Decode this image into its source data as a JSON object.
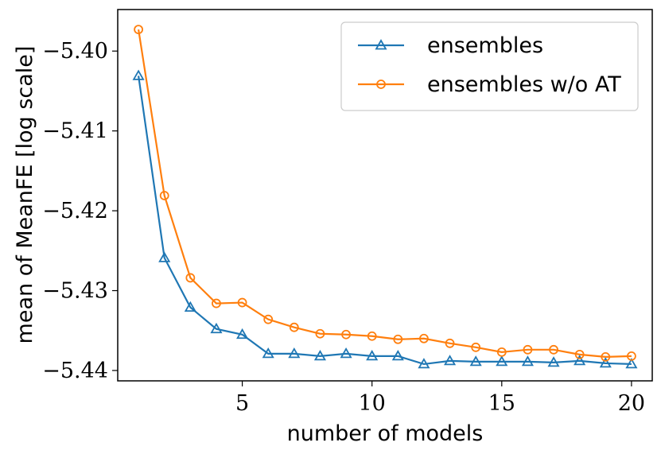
{
  "chart_data": {
    "type": "line",
    "title": "",
    "xlabel": "number of models",
    "ylabel": "mean of MeanFE [log scale]",
    "xlim": [
      0.2,
      20.8
    ],
    "ylim": [
      -5.4413,
      -5.3948
    ],
    "x_ticks": [
      5,
      10,
      15,
      20
    ],
    "x_tick_labels": [
      "5",
      "10",
      "15",
      "20"
    ],
    "y_ticks": [
      -5.44,
      -5.43,
      -5.42,
      -5.41,
      -5.4
    ],
    "y_tick_labels": [
      "−5.44",
      "−5.43",
      "−5.42",
      "−5.41",
      "−5.40"
    ],
    "grid": false,
    "legend_position": "top-right",
    "x": [
      1,
      2,
      3,
      4,
      5,
      6,
      7,
      8,
      9,
      10,
      11,
      12,
      13,
      14,
      15,
      16,
      17,
      18,
      19,
      20
    ],
    "series": [
      {
        "name": "ensembles",
        "color": "#1f77b4",
        "marker": "triangle",
        "values": [
          -5.4031,
          -5.4259,
          -5.4321,
          -5.4348,
          -5.4355,
          -5.4379,
          -5.4379,
          -5.4382,
          -5.4379,
          -5.4382,
          -5.4382,
          -5.4392,
          -5.4388,
          -5.4389,
          -5.4389,
          -5.4389,
          -5.439,
          -5.4388,
          -5.4391,
          -5.4392
        ]
      },
      {
        "name": "ensembles w/o AT",
        "color": "#ff7f0e",
        "marker": "circle",
        "values": [
          -5.3973,
          -5.4181,
          -5.4284,
          -5.4316,
          -5.4315,
          -5.4336,
          -5.4346,
          -5.4354,
          -5.4355,
          -5.4357,
          -5.4361,
          -5.436,
          -5.4366,
          -5.4371,
          -5.4377,
          -5.4374,
          -5.4374,
          -5.438,
          -5.4383,
          -5.4382
        ]
      }
    ]
  }
}
